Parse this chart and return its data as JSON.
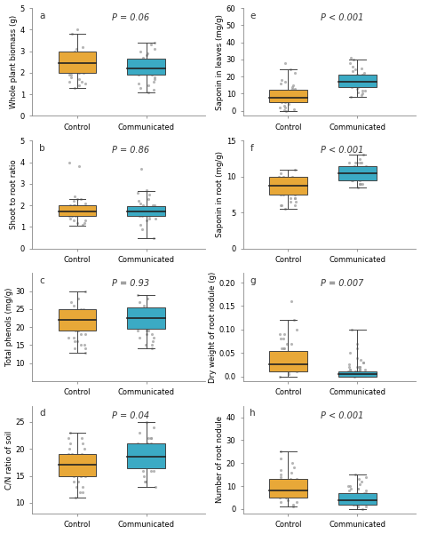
{
  "panels": [
    {
      "label": "a",
      "pval": "P = 0.06",
      "ylabel": "Whole plant biomass (g)",
      "ylim": [
        0,
        5
      ],
      "yticks": [
        0,
        1,
        2,
        3,
        4,
        5
      ],
      "ytick_labels": [
        "0",
        "1",
        "2",
        "3",
        "4",
        "5"
      ],
      "control_box": {
        "q1": 2.0,
        "median": 2.45,
        "q3": 3.0,
        "whislo": 1.3,
        "whishi": 3.8
      },
      "comm_box": {
        "q1": 1.9,
        "median": 2.2,
        "q3": 2.65,
        "whislo": 1.1,
        "whishi": 3.4
      },
      "control_pts": [
        1.3,
        1.5,
        1.6,
        1.7,
        1.8,
        1.9,
        1.9,
        2.0,
        2.0,
        2.1,
        2.1,
        2.2,
        2.2,
        2.3,
        2.3,
        2.4,
        2.4,
        2.5,
        2.5,
        2.6,
        2.7,
        2.8,
        2.9,
        3.0,
        3.1,
        3.2,
        3.8,
        4.0,
        1.4,
        1.6
      ],
      "comm_pts": [
        1.1,
        1.3,
        1.5,
        1.7,
        1.8,
        1.9,
        2.0,
        2.0,
        2.1,
        2.1,
        2.2,
        2.2,
        2.3,
        2.4,
        2.5,
        2.6,
        2.7,
        2.8,
        2.9,
        3.0,
        3.1,
        3.3,
        3.4,
        1.2,
        1.4,
        1.6,
        1.9,
        2.0,
        2.1,
        2.3
      ]
    },
    {
      "label": "b",
      "pval": "P = 0.86",
      "ylabel": "Shoot to root ratio",
      "ylim": [
        0,
        5
      ],
      "yticks": [
        0,
        1,
        2,
        3,
        4,
        5
      ],
      "ytick_labels": [
        "0",
        "1",
        "2",
        "3",
        "4",
        "5"
      ],
      "control_box": {
        "q1": 1.5,
        "median": 1.7,
        "q3": 2.0,
        "whislo": 1.05,
        "whishi": 2.3
      },
      "comm_box": {
        "q1": 1.5,
        "median": 1.7,
        "q3": 1.95,
        "whislo": 0.5,
        "whishi": 2.65
      },
      "control_pts": [
        1.1,
        1.2,
        1.3,
        1.4,
        1.5,
        1.5,
        1.6,
        1.7,
        1.7,
        1.8,
        1.8,
        1.9,
        2.0,
        2.0,
        2.1,
        2.2,
        2.3,
        2.3,
        2.4,
        1.3,
        1.6,
        1.7,
        1.8,
        1.9,
        2.0,
        4.0,
        3.8,
        1.2,
        1.5,
        1.7
      ],
      "comm_pts": [
        0.5,
        0.9,
        1.1,
        1.3,
        1.4,
        1.5,
        1.5,
        1.6,
        1.7,
        1.7,
        1.7,
        1.8,
        1.8,
        1.9,
        1.9,
        2.0,
        2.0,
        2.1,
        2.2,
        2.3,
        2.5,
        2.6,
        2.7,
        3.7,
        1.4,
        1.6,
        1.8,
        1.9,
        2.0,
        1.5
      ]
    },
    {
      "label": "c",
      "pval": "P = 0.93",
      "ylabel": "Total phenols (mg/g)",
      "ylim": [
        5,
        35
      ],
      "yticks": [
        10,
        15,
        20,
        25,
        30
      ],
      "ytick_labels": [
        "10",
        "15",
        "20",
        "25",
        "30"
      ],
      "control_box": {
        "q1": 19.0,
        "median": 22.0,
        "q3": 25.0,
        "whislo": 13.0,
        "whishi": 30.0
      },
      "comm_box": {
        "q1": 19.5,
        "median": 22.5,
        "q3": 25.5,
        "whislo": 14.0,
        "whishi": 29.0
      },
      "control_pts": [
        13,
        14,
        15,
        16,
        17,
        18,
        19,
        20,
        21,
        22,
        23,
        24,
        25,
        26,
        27,
        28,
        30,
        15,
        19,
        21,
        22,
        23,
        24,
        16,
        20,
        22,
        18,
        25,
        14,
        17
      ],
      "comm_pts": [
        14,
        15,
        16,
        17,
        18,
        19,
        20,
        21,
        22,
        23,
        24,
        25,
        26,
        27,
        28,
        29,
        15,
        20,
        22,
        23,
        21,
        19,
        18,
        25,
        17,
        24,
        23,
        20,
        19,
        22
      ]
    },
    {
      "label": "d",
      "pval": "P = 0.04",
      "ylabel": "C/N ratio of soil",
      "ylim": [
        8,
        28
      ],
      "yticks": [
        10,
        15,
        20,
        25
      ],
      "ytick_labels": [
        "10",
        "15",
        "20",
        "25"
      ],
      "control_box": {
        "q1": 15.0,
        "median": 17.0,
        "q3": 19.0,
        "whislo": 11.0,
        "whishi": 23.0
      },
      "comm_box": {
        "q1": 16.5,
        "median": 18.5,
        "q3": 21.0,
        "whislo": 13.0,
        "whishi": 25.0
      },
      "control_pts": [
        11,
        12,
        13,
        14,
        15,
        16,
        17,
        18,
        19,
        20,
        21,
        22,
        23,
        15,
        16,
        17,
        18,
        19,
        13,
        14,
        16,
        17,
        18,
        20,
        22,
        12,
        15,
        17,
        19,
        21
      ],
      "comm_pts": [
        13,
        14,
        15,
        16,
        17,
        18,
        19,
        20,
        21,
        22,
        23,
        24,
        25,
        17,
        18,
        19,
        20,
        21,
        16,
        17,
        18,
        19,
        20,
        21,
        22,
        14,
        16,
        18,
        20,
        22
      ]
    },
    {
      "label": "e",
      "pval": "P < 0.001",
      "ylabel": "Saponin in leaves (mg/g)",
      "ylim": [
        -3,
        60
      ],
      "yticks": [
        0,
        10,
        20,
        30,
        40,
        50,
        60
      ],
      "ytick_labels": [
        "0",
        "10",
        "20",
        "30",
        "40",
        "50",
        "60"
      ],
      "control_box": {
        "q1": 5.0,
        "median": 7.5,
        "q3": 12.5,
        "whislo": 0.0,
        "whishi": 24.0
      },
      "comm_box": {
        "q1": 14.0,
        "median": 17.0,
        "q3": 21.0,
        "whislo": 8.0,
        "whishi": 30.0
      },
      "control_pts": [
        0.0,
        0.5,
        1,
        2,
        3,
        4,
        5,
        6,
        7,
        8,
        9,
        10,
        11,
        12,
        13,
        14,
        15,
        16,
        17,
        18,
        22,
        24,
        28,
        2,
        5,
        7,
        9,
        11,
        13,
        6
      ],
      "comm_pts": [
        8,
        9,
        10,
        11,
        12,
        13,
        14,
        15,
        16,
        17,
        18,
        19,
        20,
        21,
        22,
        23,
        24,
        25,
        26,
        28,
        30,
        31,
        12,
        15,
        17,
        19,
        21,
        14,
        16,
        20
      ]
    },
    {
      "label": "f",
      "pval": "P < 0.001",
      "ylabel": "Saponin in root (mg/g)",
      "ylim": [
        0,
        15
      ],
      "yticks": [
        0,
        5,
        10,
        15
      ],
      "ytick_labels": [
        "0",
        "5",
        "10",
        "15"
      ],
      "control_box": {
        "q1": 7.5,
        "median": 8.7,
        "q3": 10.0,
        "whislo": 5.5,
        "whishi": 11.0
      },
      "comm_box": {
        "q1": 9.5,
        "median": 10.5,
        "q3": 11.5,
        "whislo": 8.5,
        "whishi": 13.0
      },
      "control_pts": [
        5.5,
        6,
        6.5,
        7,
        7.5,
        8,
        8.5,
        9,
        9.5,
        10,
        10.5,
        11,
        6,
        7,
        8,
        9,
        10,
        7.5,
        8.5,
        9.5,
        6.5,
        7.5,
        8.5,
        7,
        8,
        9,
        6,
        8,
        10,
        9
      ],
      "comm_pts": [
        8.5,
        9,
        9.5,
        10,
        10.5,
        11,
        11.5,
        12,
        12.5,
        13,
        9,
        10,
        11,
        12,
        9.5,
        10.5,
        11.5,
        10,
        11,
        12,
        9,
        10,
        11,
        12,
        9.5,
        10.5,
        11,
        12,
        9,
        10
      ]
    },
    {
      "label": "g",
      "pval": "P = 0.007",
      "ylabel": "Dry weight of root nodule (g)",
      "ylim": [
        -0.01,
        0.22
      ],
      "yticks": [
        0.0,
        0.05,
        0.1,
        0.15,
        0.2
      ],
      "ytick_labels": [
        "0.0",
        "0.05",
        "0.10",
        "0.15",
        "0.20"
      ],
      "control_box": {
        "q1": 0.01,
        "median": 0.025,
        "q3": 0.055,
        "whislo": 0.0,
        "whishi": 0.12
      },
      "comm_box": {
        "q1": 0.0,
        "median": 0.005,
        "q3": 0.01,
        "whislo": 0.0,
        "whishi": 0.1
      },
      "control_pts": [
        0.0,
        0.005,
        0.01,
        0.015,
        0.02,
        0.025,
        0.03,
        0.04,
        0.05,
        0.06,
        0.07,
        0.08,
        0.09,
        0.1,
        0.12,
        0.16,
        0.02,
        0.04,
        0.06,
        0.08,
        0.03,
        0.05,
        0.07,
        0.09,
        0.01,
        0.03,
        0.05,
        0.02,
        0.04,
        0.06
      ],
      "comm_pts": [
        0.0,
        0.005,
        0.01,
        0.015,
        0.02,
        0.025,
        0.03,
        0.035,
        0.04,
        0.05,
        0.06,
        0.07,
        0.1,
        0.005,
        0.01,
        0.015,
        0.02,
        0.005,
        0.01,
        0.015,
        0.02,
        0.03,
        0.005,
        0.01,
        0.015,
        0.02,
        0.005,
        0.01,
        0.015,
        0.02
      ]
    },
    {
      "label": "h",
      "pval": "P < 0.001",
      "ylabel": "Number of root nodule",
      "ylim": [
        -2,
        45
      ],
      "yticks": [
        0,
        10,
        20,
        30,
        40
      ],
      "ytick_labels": [
        "0",
        "10",
        "20",
        "30",
        "40"
      ],
      "control_box": {
        "q1": 5.0,
        "median": 8.0,
        "q3": 13.0,
        "whislo": 1.0,
        "whishi": 25.0
      },
      "comm_box": {
        "q1": 2.0,
        "median": 4.0,
        "q3": 7.0,
        "whislo": 0.0,
        "whishi": 15.0
      },
      "control_pts": [
        1,
        2,
        3,
        4,
        5,
        6,
        7,
        8,
        9,
        10,
        11,
        12,
        13,
        14,
        15,
        16,
        17,
        18,
        20,
        22,
        25,
        3,
        5,
        7,
        9,
        11,
        13,
        6,
        8,
        10
      ],
      "comm_pts": [
        0,
        1,
        2,
        3,
        4,
        5,
        6,
        7,
        8,
        9,
        10,
        11,
        12,
        13,
        14,
        15,
        2,
        4,
        6,
        8,
        10,
        3,
        5,
        7,
        9,
        1,
        3,
        5,
        7,
        9
      ]
    }
  ],
  "color_control": "#E8A838",
  "color_comm": "#3BAAC4",
  "color_pts": "#9e9e9e",
  "bg_color": "#ffffff"
}
